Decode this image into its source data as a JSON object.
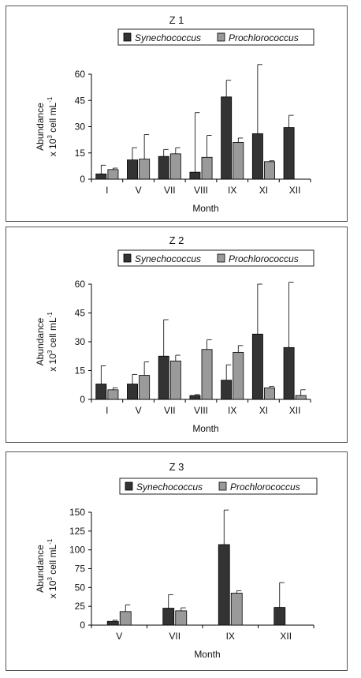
{
  "colors": {
    "synechococcus": "#333333",
    "prochlorococcus": "#9a9a9a",
    "axis": "#000000"
  },
  "chart_data": [
    {
      "type": "bar",
      "title": "Z 1",
      "xlabel": "Month",
      "ylabel_line1": "Abundance",
      "ylabel_line2": "x 10",
      "ylabel_sup": "3",
      "ylabel_unit": " cell mL",
      "ylabel_unit_sup": "-1",
      "ylim": [
        0,
        60
      ],
      "yticks": [
        0,
        15,
        30,
        45,
        60
      ],
      "categories": [
        "I",
        "V",
        "VII",
        "VIII",
        "IX",
        "XI",
        "XII"
      ],
      "legend_position": "top",
      "series": [
        {
          "name": "Synechococcus",
          "values": [
            3,
            11,
            13,
            4,
            47,
            26,
            29.5
          ],
          "error": [
            5,
            7,
            4,
            34,
            9.5,
            39.5,
            7
          ]
        },
        {
          "name": "Prochlorococcus",
          "values": [
            5.5,
            11.5,
            14.5,
            12.5,
            21,
            10,
            null
          ],
          "error": [
            0.8,
            14,
            3.5,
            12.5,
            2.5,
            0.5,
            null
          ]
        }
      ]
    },
    {
      "type": "bar",
      "title": "Z 2",
      "xlabel": "Month",
      "ylabel_line1": "Abundance",
      "ylabel_line2": "x 10",
      "ylabel_sup": "3",
      "ylabel_unit": " cell mL",
      "ylabel_unit_sup": "-1",
      "ylim": [
        0,
        60
      ],
      "yticks": [
        0,
        15,
        30,
        45,
        60
      ],
      "categories": [
        "I",
        "V",
        "VII",
        "VIII",
        "IX",
        "XI",
        "XII"
      ],
      "legend_position": "top",
      "series": [
        {
          "name": "Synechococcus",
          "values": [
            8,
            8,
            22.5,
            2,
            10,
            34,
            27
          ],
          "error": [
            9.5,
            5,
            19,
            0.5,
            8,
            26,
            34
          ]
        },
        {
          "name": "Prochlorococcus",
          "values": [
            5,
            12.5,
            20,
            26,
            24.5,
            6,
            2
          ],
          "error": [
            1,
            7,
            3,
            5,
            3.5,
            0.8,
            3
          ]
        }
      ]
    },
    {
      "type": "bar",
      "title": "Z 3",
      "xlabel": "Month",
      "ylabel_line1": "Abundance",
      "ylabel_line2": "x 10",
      "ylabel_sup": "3",
      "ylabel_unit": " cell mL",
      "ylabel_unit_sup": "-1",
      "ylim": [
        0,
        150
      ],
      "yticks": [
        0,
        25,
        50,
        75,
        100,
        125,
        150
      ],
      "categories": [
        "V",
        "VII",
        "IX",
        "XII"
      ],
      "legend_position": "top",
      "series": [
        {
          "name": "Synechococcus",
          "values": [
            5,
            22.5,
            107,
            23.5
          ],
          "error": [
            1.5,
            18,
            46,
            33
          ]
        },
        {
          "name": "Prochlorococcus",
          "values": [
            18,
            19,
            42.5,
            null
          ],
          "error": [
            9,
            4,
            3,
            null
          ]
        }
      ]
    }
  ]
}
